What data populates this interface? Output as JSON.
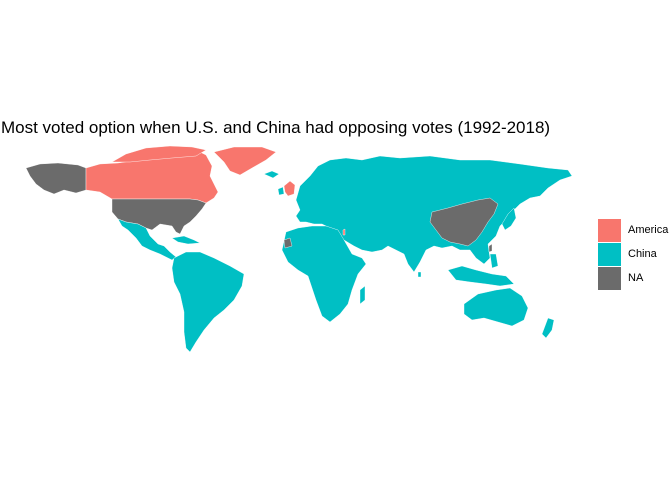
{
  "title": "Most voted option when U.S. and China had opposing votes (1992-2018)",
  "colors": {
    "america": "#F8766D",
    "china": "#00BFC4",
    "na": "#6B6B6B"
  },
  "legend": [
    {
      "label": "America",
      "color": "#F8766D"
    },
    {
      "label": "China",
      "color": "#00BFC4"
    },
    {
      "label": "NA",
      "color": "#6B6B6B"
    }
  ],
  "chart_data": {
    "type": "choropleth",
    "categories": [
      "America",
      "China",
      "NA"
    ],
    "regions": [
      {
        "name": "Canada",
        "value": "America"
      },
      {
        "name": "Greenland",
        "value": "America"
      },
      {
        "name": "Israel",
        "value": "America"
      },
      {
        "name": "United Kingdom",
        "value": "America"
      },
      {
        "name": "United States",
        "value": "NA"
      },
      {
        "name": "Alaska",
        "value": "NA"
      },
      {
        "name": "China",
        "value": "NA"
      },
      {
        "name": "Taiwan",
        "value": "NA"
      },
      {
        "name": "Western Sahara",
        "value": "NA"
      },
      {
        "name": "Latin America",
        "value": "China"
      },
      {
        "name": "Europe",
        "value": "China"
      },
      {
        "name": "Africa",
        "value": "China"
      },
      {
        "name": "Russia",
        "value": "China"
      },
      {
        "name": "Middle East",
        "value": "China"
      },
      {
        "name": "South Asia",
        "value": "China"
      },
      {
        "name": "Southeast Asia",
        "value": "China"
      },
      {
        "name": "Japan",
        "value": "China"
      },
      {
        "name": "Korea",
        "value": "China"
      },
      {
        "name": "Australia",
        "value": "China"
      },
      {
        "name": "New Zealand",
        "value": "China"
      }
    ]
  }
}
